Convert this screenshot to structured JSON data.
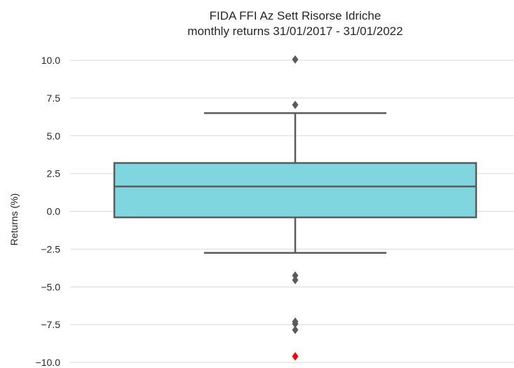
{
  "chart_data": {
    "type": "box",
    "title": "FIDA FFI Az Sett Risorse Idriche",
    "subtitle": "monthly returns 31/01/2017 - 31/01/2022",
    "xlabel": "",
    "ylabel": "Returns (%)",
    "ylim": [
      -10.2,
      11.1
    ],
    "yticks": [
      10.0,
      7.5,
      5.0,
      2.5,
      0.0,
      -2.5,
      -5.0,
      -7.5,
      -10.0
    ],
    "ytick_labels": [
      "10.0",
      "7.5",
      "5.0",
      "2.5",
      "0.0",
      "−2.5",
      "−5.0",
      "−7.5",
      "−10.0"
    ],
    "grid": "horizontal",
    "box": {
      "q1": -0.4,
      "median": 1.65,
      "q3": 3.2,
      "whisker_low": -2.75,
      "whisker_high": 6.5
    },
    "outliers": [
      10.05,
      7.05,
      -4.25,
      -4.55,
      -7.3,
      -7.45,
      -7.85
    ],
    "highlight_points": [
      -9.6
    ],
    "colors": {
      "box_fill": "#7fd6de",
      "box_edge": "#5b5b5b",
      "grid": "#d9d9d9",
      "outlier": "#5b5b5b",
      "highlight": "#ff0000"
    }
  }
}
